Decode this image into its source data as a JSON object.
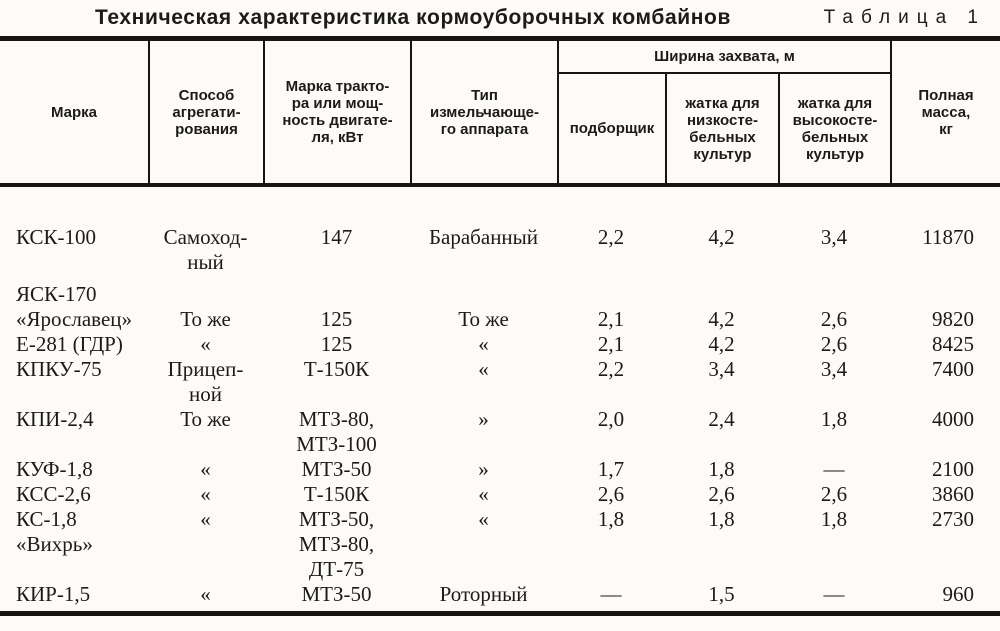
{
  "page": {
    "title": "Техническая характеристика кормоуборочных комбайнов",
    "table_label": "Таблица 1"
  },
  "header": {
    "marka": "Марка",
    "sposob": "Способ\nагрегати-\nрования",
    "traktor": "Марка тракто-\nра или мощ-\nность двигате-\nля, кВт",
    "tip": "Тип\nизмельчающе-\nго аппарата",
    "group": "Ширина захвата, м",
    "podborshik": "подборщик",
    "zhatka_low": "жатка для\nнизкосте-\nбельных\nкультур",
    "zhatka_high": "жатка для\nвысокосте-\nбельных\nкультур",
    "massa": "Полная\nмасса,\nкг"
  },
  "table": {
    "columns": [
      "Марка",
      "Способ агрегатирования",
      "Марка трактора или мощность двигателя, кВт",
      "Тип измельчающего аппарата",
      "Ширина захвата, м — подборщик",
      "Ширина захвата, м — жатка для низкостебельных культур",
      "Ширина захвата, м — жатка для высокостебельных культур",
      "Полная масса, кг"
    ],
    "rows": [
      {
        "cells": [
          "КСК-100",
          "Самоход-\nный",
          "147",
          "Барабанный",
          "2,2",
          "4,2",
          "3,4",
          "11870"
        ]
      },
      {
        "cells": [
          "ЯСК-170\n«Ярославец»",
          "То же",
          "125",
          "То же",
          "2,1",
          "4,2",
          "2,6",
          "9820"
        ]
      },
      {
        "cells": [
          "Е-281 (ГДР)",
          "«",
          "125",
          "«",
          "2,1",
          "4,2",
          "2,6",
          "8425"
        ]
      },
      {
        "cells": [
          "КПКУ-75",
          "Прицеп-\nной",
          "Т-150К",
          "«",
          "2,2",
          "3,4",
          "3,4",
          "7400"
        ]
      },
      {
        "cells": [
          "КПИ-2,4",
          "То же",
          "МТЗ-80,\nМТЗ-100",
          "»",
          "2,0",
          "2,4",
          "1,8",
          "4000"
        ]
      },
      {
        "cells": [
          "КУФ-1,8",
          "«",
          "МТЗ-50",
          "»",
          "1,7",
          "1,8",
          "—",
          "2100"
        ]
      },
      {
        "cells": [
          "КСС-2,6",
          "«",
          "Т-150К",
          "«",
          "2,6",
          "2,6",
          "2,6",
          "3860"
        ]
      },
      {
        "cells": [
          "КС-1,8\n«Вихрь»",
          "«",
          "МТЗ-50,\nМТЗ-80,\nДТ-75",
          "«",
          "1,8",
          "1,8",
          "1,8",
          "2730"
        ]
      },
      {
        "cells": [
          "КИР-1,5",
          "«",
          "МТЗ-50",
          "Роторный",
          "—",
          "1,5",
          "—",
          "960"
        ]
      }
    ]
  }
}
